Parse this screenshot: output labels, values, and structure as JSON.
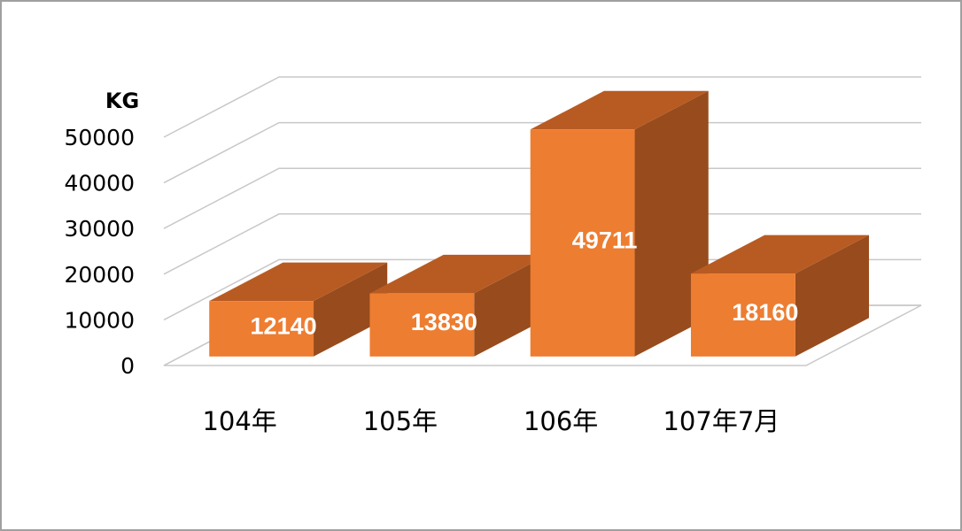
{
  "chart_data": {
    "type": "bar3d",
    "y_label": "KG",
    "categories": [
      "104年",
      "105年",
      "106年",
      "107年7月"
    ],
    "values": [
      12140,
      13830,
      49711,
      18160
    ],
    "color": "#ed7d31",
    "top_color": "#b85b22",
    "side_color": "#984b1c",
    "ylim": [
      0,
      50000
    ],
    "yticks": [
      0,
      10000,
      20000,
      30000,
      40000,
      50000
    ],
    "grid": true
  }
}
